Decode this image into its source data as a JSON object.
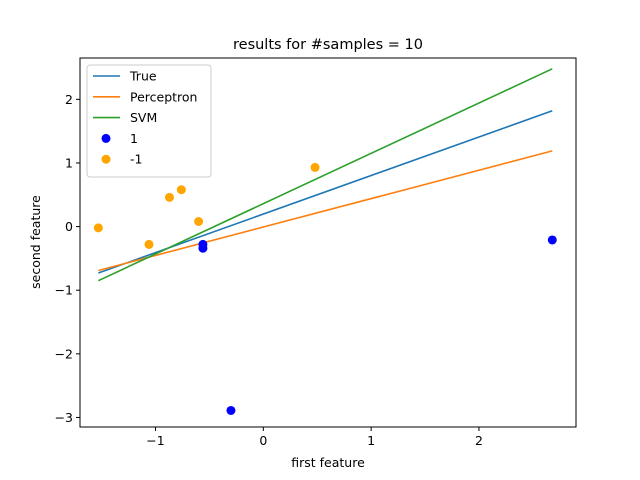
{
  "chart_data": {
    "type": "scatter",
    "title": "results for #samples = 10",
    "xlabel": "first feature",
    "ylabel": "second feature",
    "xlim": [
      -1.7,
      2.9
    ],
    "ylim": [
      -3.15,
      2.65
    ],
    "xticks": [
      -1,
      0,
      1,
      2
    ],
    "yticks": [
      -3,
      -2,
      -1,
      0,
      1,
      2
    ],
    "grid": false,
    "legend_position": "top-left",
    "lines": [
      {
        "name": "True",
        "color": "#1f77b4",
        "x": [
          -1.53,
          2.68
        ],
        "y": [
          -0.73,
          1.82
        ]
      },
      {
        "name": "Perceptron",
        "color": "#ff7f0e",
        "x": [
          -1.53,
          2.68
        ],
        "y": [
          -0.69,
          1.19
        ]
      },
      {
        "name": "SVM",
        "color": "#2ca02c",
        "x": [
          -1.53,
          2.68
        ],
        "y": [
          -0.85,
          2.48
        ]
      }
    ],
    "series": [
      {
        "name": "1",
        "color": "#0000ff",
        "points": [
          [
            -0.56,
            -0.28
          ],
          [
            -0.56,
            -0.34
          ],
          [
            2.68,
            -0.21
          ],
          [
            -0.3,
            -2.89
          ]
        ]
      },
      {
        "name": "-1",
        "color": "#ffa500",
        "points": [
          [
            -1.53,
            -0.02
          ],
          [
            -1.06,
            -0.28
          ],
          [
            -0.87,
            0.46
          ],
          [
            -0.76,
            0.58
          ],
          [
            -0.6,
            0.08
          ],
          [
            0.48,
            0.93
          ]
        ]
      }
    ]
  }
}
